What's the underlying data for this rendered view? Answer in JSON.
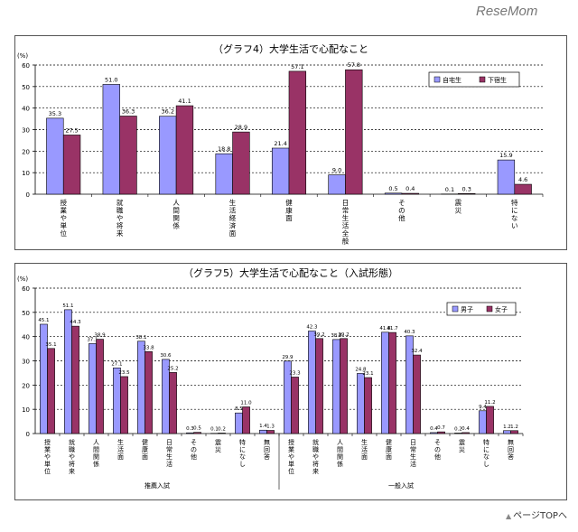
{
  "logo": "ReseMom",
  "page_top": "ページTOPへ",
  "chart_data": [
    {
      "type": "bar",
      "title": "（グラフ4）大学生活で心配なこと",
      "ylabel": "(%)",
      "ylim": [
        0,
        60
      ],
      "yticks": [
        0,
        10,
        20,
        30,
        40,
        50,
        60
      ],
      "categories": [
        "授業や単位",
        "就職や将来",
        "人間関係",
        "生活・経済面",
        "健康面",
        "日常生活全般",
        "その他",
        "震災",
        "特にない"
      ],
      "series": [
        {
          "name": "自宅生",
          "color": "#9999ff",
          "values": [
            35.3,
            51.0,
            36.2,
            18.8,
            21.4,
            9.0,
            0.5,
            0.1,
            15.9
          ]
        },
        {
          "name": "下宿生",
          "color": "#993366",
          "values": [
            27.5,
            36.3,
            41.1,
            28.9,
            57.1,
            57.8,
            0.4,
            0.3,
            4.6
          ]
        }
      ],
      "value_labels": [
        [
          "35.3",
          "51.0",
          "36.2",
          "18.8",
          "21.4",
          "9.0",
          "0.5",
          "0.1",
          "15.9"
        ],
        [
          "27.5",
          "36.3",
          "41.1",
          "28.9",
          "57.1",
          "57.8",
          "0.4",
          "0.3",
          "4.6"
        ]
      ],
      "legend_position": "top-right"
    },
    {
      "type": "bar",
      "title": "（グラフ5）大学生活で心配なこと（入試形態）",
      "ylabel": "(%)",
      "ylim": [
        0,
        60
      ],
      "yticks": [
        0,
        10,
        20,
        30,
        40,
        50,
        60
      ],
      "categories": [
        "授業や単位",
        "就職や将来",
        "人間関係",
        "生活面",
        "健康面",
        "日常生活",
        "その他",
        "震災",
        "特になし",
        "無回答",
        "授業や単位",
        "就職や将来",
        "人間関係",
        "生活面",
        "健康面",
        "日常生活",
        "その他",
        "震災",
        "特になし",
        "無回答"
      ],
      "groups": [
        "推薦入試",
        "一般入試"
      ],
      "series": [
        {
          "name": "男子",
          "color": "#9999ff",
          "values": [
            45.1,
            51.1,
            37.1,
            27.1,
            38.1,
            30.6,
            0.3,
            0.1,
            8.5,
            1.4,
            29.9,
            42.3,
            38.8,
            24.8,
            41.8,
            40.3,
            0.4,
            0.2,
            9.4,
            1.2
          ]
        },
        {
          "name": "女子",
          "color": "#993366",
          "values": [
            35.1,
            44.3,
            38.9,
            23.5,
            33.8,
            25.2,
            0.5,
            0.2,
            11.0,
            1.3,
            23.3,
            39.2,
            39.2,
            23.1,
            41.7,
            32.4,
            0.7,
            0.4,
            11.2,
            1.2
          ]
        }
      ],
      "value_labels": [
        [
          "45.1",
          "51.1",
          "37.1",
          "27.1",
          "38.1",
          "30.6",
          "0.3",
          "0.1",
          "8.5",
          "1.4",
          "29.9",
          "42.3",
          "38.8",
          "24.8",
          "41.8",
          "40.3",
          "0.4",
          "0.2",
          "9.4",
          "1.2"
        ],
        [
          "35.1",
          "44.3",
          "38.9",
          "23.5",
          "33.8",
          "25.2",
          "0.5",
          "0.2",
          "11.0",
          "1.3",
          "23.3",
          "39.2",
          "39.2",
          "23.1",
          "41.7",
          "32.4",
          "0.7",
          "0.4",
          "11.2",
          "1.2"
        ]
      ],
      "legend_position": "top-right"
    }
  ]
}
